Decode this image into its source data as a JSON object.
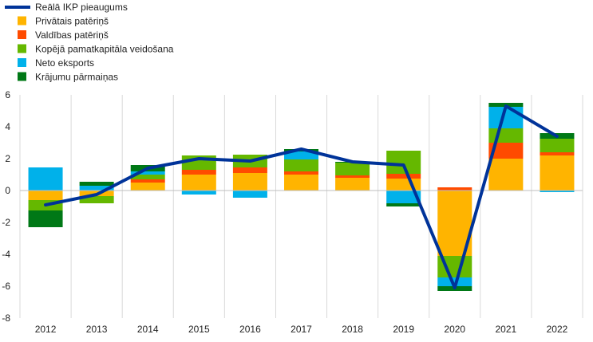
{
  "chart_data": {
    "type": "bar",
    "stacked": true,
    "categories": [
      "2012",
      "2013",
      "2014",
      "2015",
      "2016",
      "2017",
      "2018",
      "2019",
      "2020",
      "2021",
      "2022"
    ],
    "ylim": [
      -8,
      6
    ],
    "yticks": [
      -8,
      -6,
      -4,
      -2,
      0,
      2,
      4,
      6
    ],
    "grid": "vertical",
    "legend_position": "top-left",
    "line": {
      "name": "Reālā IKP pieaugums",
      "color": "#003399",
      "values": [
        -0.9,
        -0.25,
        1.4,
        2.0,
        1.85,
        2.6,
        1.8,
        1.6,
        -6.1,
        5.3,
        3.4
      ]
    },
    "series": [
      {
        "name": "Privātais patēriņš",
        "color": "#ffb400",
        "values": [
          -0.6,
          -0.35,
          0.5,
          1.0,
          1.1,
          1.0,
          0.8,
          0.75,
          -4.1,
          2.0,
          2.2
        ]
      },
      {
        "name": "Valdības patēriņš",
        "color": "#ff4b00",
        "values": [
          0.0,
          0.0,
          0.2,
          0.3,
          0.35,
          0.2,
          0.15,
          0.3,
          0.2,
          1.0,
          0.2
        ]
      },
      {
        "name": "Kopējā pamatkapitāla veidošana",
        "color": "#65b800",
        "values": [
          -0.65,
          -0.45,
          0.3,
          0.9,
          0.8,
          0.75,
          0.8,
          1.45,
          -1.35,
          0.9,
          0.85
        ]
      },
      {
        "name": "Neto eksports",
        "color": "#00b1ea",
        "values": [
          1.45,
          0.3,
          0.2,
          -0.25,
          -0.45,
          0.5,
          0.0,
          -0.8,
          -0.55,
          1.35,
          -0.1
        ]
      },
      {
        "name": "Krājumu pārmaiņas",
        "color": "#007816",
        "values": [
          -1.05,
          0.25,
          0.4,
          0.0,
          0.0,
          0.15,
          0.05,
          -0.2,
          -0.3,
          0.25,
          0.35
        ]
      }
    ]
  }
}
